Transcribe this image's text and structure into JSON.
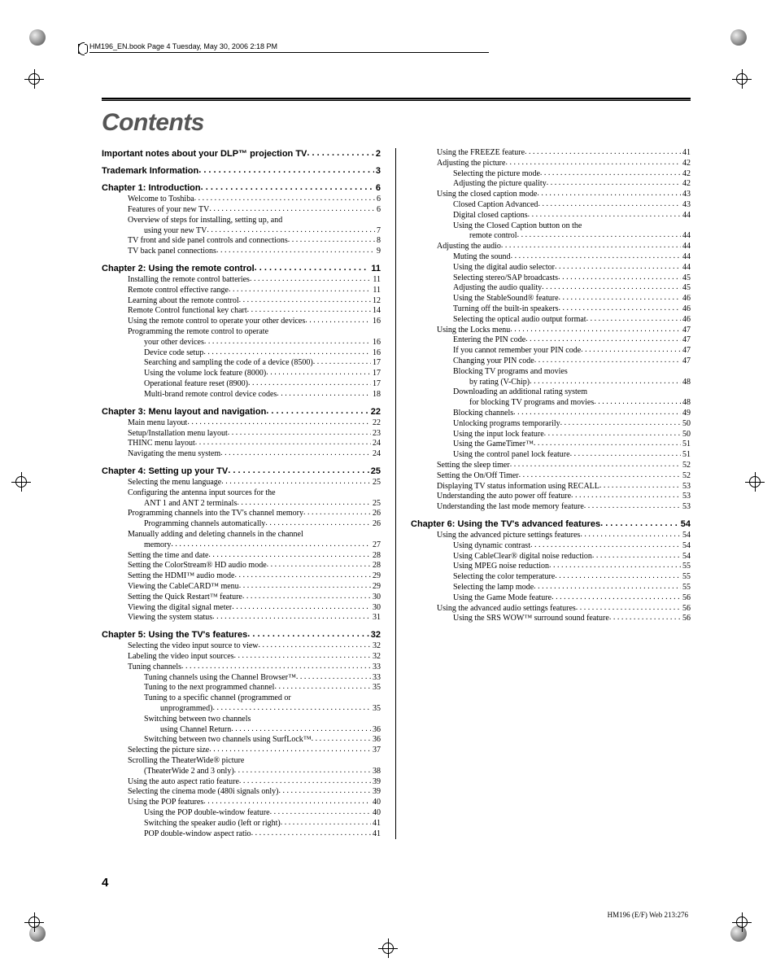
{
  "header_text": "HM196_EN.book  Page 4  Tuesday, May 30, 2006  2:18 PM",
  "title": "Contents",
  "page_number": "4",
  "footer_right": "HM196 (E/F) Web 213:276",
  "col_left": [
    {
      "lvl": 1,
      "t": "Important notes about your DLP™ projection TV",
      "p": "2"
    },
    {
      "lvl": 1,
      "t": "Trademark Information",
      "p": "3"
    },
    {
      "lvl": 1,
      "t": "Chapter 1: Introduction",
      "p": "6"
    },
    {
      "lvl": 2,
      "t": "Welcome to Toshiba",
      "p": "6"
    },
    {
      "lvl": 2,
      "t": "Features of your new TV",
      "p": "6"
    },
    {
      "lvl": 2,
      "t": "Overview of steps for installing, setting up, and",
      "np": true
    },
    {
      "lvl": 3,
      "t": "using your new TV",
      "p": "7"
    },
    {
      "lvl": 2,
      "t": "TV front and side panel controls and connections",
      "p": "8"
    },
    {
      "lvl": 2,
      "t": "TV back panel connections",
      "p": "9"
    },
    {
      "lvl": 1,
      "t": "Chapter 2: Using the remote control",
      "p": "11"
    },
    {
      "lvl": 2,
      "t": "Installing the remote control batteries",
      "p": "11"
    },
    {
      "lvl": 2,
      "t": "Remote control effective range",
      "p": "11"
    },
    {
      "lvl": 2,
      "t": "Learning about the remote control",
      "p": "12"
    },
    {
      "lvl": 2,
      "t": "Remote Control functional key chart",
      "p": "14"
    },
    {
      "lvl": 2,
      "t": "Using the remote control to operate your other devices",
      "p": "16"
    },
    {
      "lvl": 2,
      "t": "Programming the remote control to operate",
      "np": true
    },
    {
      "lvl": 3,
      "t": "your other devices",
      "p": "16"
    },
    {
      "lvl": 3,
      "t": "Device code setup",
      "p": "16"
    },
    {
      "lvl": 3,
      "t": "Searching and sampling the code of a device (8500)",
      "p": "17"
    },
    {
      "lvl": 3,
      "t": "Using the volume lock feature (8000)",
      "p": "17"
    },
    {
      "lvl": 3,
      "t": "Operational feature reset (8900)",
      "p": "17"
    },
    {
      "lvl": 3,
      "t": "Multi-brand remote control device codes",
      "p": "18"
    },
    {
      "lvl": 1,
      "t": "Chapter 3: Menu layout and navigation",
      "p": "22"
    },
    {
      "lvl": 2,
      "t": "Main menu layout",
      "p": "22"
    },
    {
      "lvl": 2,
      "t": "Setup/Installation menu layout",
      "p": "23"
    },
    {
      "lvl": 2,
      "t": "THINC menu layout",
      "p": "24"
    },
    {
      "lvl": 2,
      "t": "Navigating the menu system",
      "p": "24"
    },
    {
      "lvl": 1,
      "t": "Chapter 4: Setting up your TV",
      "p": "25"
    },
    {
      "lvl": 2,
      "t": "Selecting the menu language",
      "p": "25"
    },
    {
      "lvl": 2,
      "t": "Configuring the antenna input sources for the",
      "np": true
    },
    {
      "lvl": 3,
      "t": "ANT 1 and ANT 2 terminals",
      "p": "25"
    },
    {
      "lvl": 2,
      "t": "Programming channels into the TV's channel memory",
      "p": "26"
    },
    {
      "lvl": 3,
      "t": "Programming channels automatically",
      "p": "26"
    },
    {
      "lvl": 2,
      "t": "Manually adding and deleting channels in the channel",
      "np": true
    },
    {
      "lvl": 3,
      "t": "memory",
      "p": "27"
    },
    {
      "lvl": 2,
      "t": "Setting the time and date",
      "p": "28"
    },
    {
      "lvl": 2,
      "t": "Setting the ColorStream® HD audio mode",
      "p": "28"
    },
    {
      "lvl": 2,
      "t": "Setting the HDMI™ audio mode",
      "p": "29"
    },
    {
      "lvl": 2,
      "t": "Viewing the CableCARD™ menu",
      "p": "29"
    },
    {
      "lvl": 2,
      "t": "Setting the Quick Restart™ feature",
      "p": "30"
    },
    {
      "lvl": 2,
      "t": "Viewing the digital signal meter",
      "p": "30"
    },
    {
      "lvl": 2,
      "t": "Viewing the system status",
      "p": "31"
    },
    {
      "lvl": 1,
      "t": "Chapter 5: Using the TV's features",
      "p": "32"
    },
    {
      "lvl": 2,
      "t": "Selecting the video input source to view",
      "p": "32"
    },
    {
      "lvl": 2,
      "t": "Labeling the video input sources",
      "p": "32"
    },
    {
      "lvl": 2,
      "t": "Tuning channels",
      "p": "33"
    },
    {
      "lvl": 3,
      "t": "Tuning channels using the Channel Browser™",
      "p": "33"
    },
    {
      "lvl": 3,
      "t": "Tuning to the next programmed channel",
      "p": "35"
    },
    {
      "lvl": 3,
      "t": "Tuning to a specific channel (programmed or",
      "np": true
    },
    {
      "lvl": 4,
      "t": "unprogrammed)",
      "p": "35"
    },
    {
      "lvl": 3,
      "t": "Switching between two channels",
      "np": true
    },
    {
      "lvl": 4,
      "t": "using Channel Return",
      "p": "36"
    },
    {
      "lvl": 3,
      "t": "Switching between two channels using SurfLock™",
      "p": "36"
    },
    {
      "lvl": 2,
      "t": "Selecting the picture size",
      "p": "37"
    },
    {
      "lvl": 2,
      "t": "Scrolling the TheaterWide® picture",
      "np": true
    },
    {
      "lvl": 3,
      "t": "(TheaterWide 2 and 3 only)",
      "p": "38"
    },
    {
      "lvl": 2,
      "t": "Using the auto aspect ratio feature",
      "p": "39"
    },
    {
      "lvl": 2,
      "t": "Selecting the cinema mode (480i signals only)",
      "p": "39"
    },
    {
      "lvl": 2,
      "t": "Using the POP features",
      "p": "40"
    },
    {
      "lvl": 3,
      "t": "Using the POP double-window feature",
      "p": "40"
    },
    {
      "lvl": 3,
      "t": "Switching the speaker audio (left or right)",
      "p": "41"
    },
    {
      "lvl": 3,
      "t": "POP double-window aspect ratio",
      "p": "41"
    }
  ],
  "col_right": [
    {
      "lvl": 2,
      "t": "Using the FREEZE feature",
      "p": "41"
    },
    {
      "lvl": 2,
      "t": "Adjusting the picture",
      "p": "42"
    },
    {
      "lvl": 3,
      "t": "Selecting the picture mode",
      "p": "42"
    },
    {
      "lvl": 3,
      "t": "Adjusting the picture quality",
      "p": "42"
    },
    {
      "lvl": 2,
      "t": "Using the closed caption mode",
      "p": "43"
    },
    {
      "lvl": 3,
      "t": "Closed Caption Advanced",
      "p": "43"
    },
    {
      "lvl": 3,
      "t": "Digital closed captions",
      "p": "44"
    },
    {
      "lvl": 3,
      "t": "Using the Closed Caption button on the",
      "np": true
    },
    {
      "lvl": 4,
      "t": "remote control",
      "p": "44"
    },
    {
      "lvl": 2,
      "t": "Adjusting the audio",
      "p": "44"
    },
    {
      "lvl": 3,
      "t": "Muting the sound",
      "p": "44"
    },
    {
      "lvl": 3,
      "t": "Using the digital audio selector",
      "p": "44"
    },
    {
      "lvl": 3,
      "t": "Selecting stereo/SAP broadcasts",
      "p": "45"
    },
    {
      "lvl": 3,
      "t": "Adjusting the audio quality",
      "p": "45"
    },
    {
      "lvl": 3,
      "t": "Using the StableSound® feature",
      "p": "46"
    },
    {
      "lvl": 3,
      "t": "Turning off the built-in speakers",
      "p": "46"
    },
    {
      "lvl": 3,
      "t": "Selecting the optical audio output format",
      "p": "46"
    },
    {
      "lvl": 2,
      "t": "Using the Locks menu",
      "p": "47"
    },
    {
      "lvl": 3,
      "t": "Entering the PIN code",
      "p": "47"
    },
    {
      "lvl": 3,
      "t": "If you cannot remember your PIN code",
      "p": "47"
    },
    {
      "lvl": 3,
      "t": "Changing your PIN code",
      "p": "47"
    },
    {
      "lvl": 3,
      "t": "Blocking TV programs and movies",
      "np": true
    },
    {
      "lvl": 4,
      "t": "by rating (V-Chip)",
      "p": "48"
    },
    {
      "lvl": 3,
      "t": "Downloading an additional rating system",
      "np": true
    },
    {
      "lvl": 4,
      "t": "for blocking TV programs and movies",
      "p": "48"
    },
    {
      "lvl": 3,
      "t": "Blocking channels",
      "p": "49"
    },
    {
      "lvl": 3,
      "t": "Unlocking programs temporarily",
      "p": "50"
    },
    {
      "lvl": 3,
      "t": "Using the input lock feature",
      "p": "50"
    },
    {
      "lvl": 3,
      "t": "Using the GameTimer™",
      "p": "51"
    },
    {
      "lvl": 3,
      "t": "Using the control panel lock feature",
      "p": "51"
    },
    {
      "lvl": 2,
      "t": "Setting the sleep timer",
      "p": "52"
    },
    {
      "lvl": 2,
      "t": "Setting the On/Off Timer",
      "p": "52"
    },
    {
      "lvl": 2,
      "t": "Displaying TV status information using RECALL",
      "p": "53"
    },
    {
      "lvl": 2,
      "t": "Understanding the auto power off feature",
      "p": "53"
    },
    {
      "lvl": 2,
      "t": "Understanding the last mode memory feature",
      "p": "53"
    },
    {
      "lvl": 1,
      "t": "Chapter 6: Using the TV's advanced features",
      "p": "54"
    },
    {
      "lvl": 2,
      "t": "Using the advanced picture settings features",
      "p": "54"
    },
    {
      "lvl": 3,
      "t": "Using dynamic contrast",
      "p": "54"
    },
    {
      "lvl": 3,
      "t": "Using CableClear® digital noise reduction",
      "p": "54"
    },
    {
      "lvl": 3,
      "t": "Using MPEG noise reduction",
      "p": "55"
    },
    {
      "lvl": 3,
      "t": "Selecting the color temperature",
      "p": "55"
    },
    {
      "lvl": 3,
      "t": "Selecting the lamp mode",
      "p": "55"
    },
    {
      "lvl": 3,
      "t": "Using the Game Mode feature",
      "p": "56"
    },
    {
      "lvl": 2,
      "t": "Using the advanced audio settings features",
      "p": "56"
    },
    {
      "lvl": 3,
      "t": "Using the SRS WOW™ surround sound feature",
      "p": "56"
    }
  ]
}
